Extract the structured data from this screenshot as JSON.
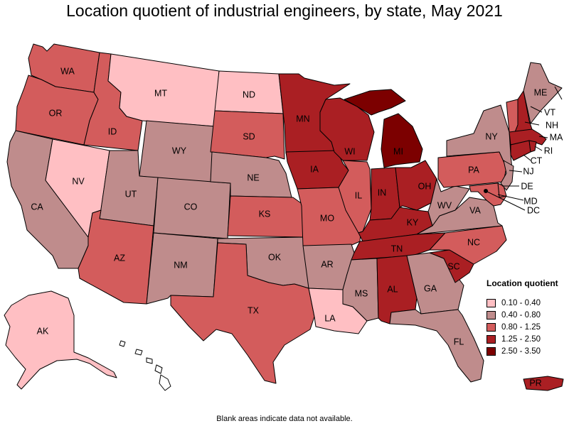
{
  "title": "Location quotient of industrial engineers, by state, May 2021",
  "footnote": "Blank areas indicate data not available.",
  "legend": {
    "title": "Location quotient",
    "items": [
      {
        "label": "0.10 - 0.40",
        "color": "#ffbfc3"
      },
      {
        "label": "0.40 - 0.80",
        "color": "#bf8c8c"
      },
      {
        "label": "0.80 - 1.25",
        "color": "#d35c5c"
      },
      {
        "label": "1.25 - 2.50",
        "color": "#aa1f23"
      },
      {
        "label": "2.50 - 3.50",
        "color": "#7c0000"
      }
    ]
  },
  "states": {
    "WA": {
      "label": "WA",
      "class": 3
    },
    "OR": {
      "label": "OR",
      "class": 3
    },
    "CA": {
      "label": "CA",
      "class": 2
    },
    "ID": {
      "label": "ID",
      "class": 3
    },
    "NV": {
      "label": "NV",
      "class": 1
    },
    "MT": {
      "label": "MT",
      "class": 1
    },
    "WY": {
      "label": "WY",
      "class": 2
    },
    "UT": {
      "label": "UT",
      "class": 2
    },
    "AZ": {
      "label": "AZ",
      "class": 3
    },
    "CO": {
      "label": "CO",
      "class": 2
    },
    "NM": {
      "label": "NM",
      "class": 2
    },
    "ND": {
      "label": "ND",
      "class": 1
    },
    "SD": {
      "label": "SD",
      "class": 3
    },
    "NE": {
      "label": "NE",
      "class": 2
    },
    "KS": {
      "label": "KS",
      "class": 3
    },
    "OK": {
      "label": "OK",
      "class": 2
    },
    "TX": {
      "label": "TX",
      "class": 3
    },
    "MN": {
      "label": "MN",
      "class": 4
    },
    "IA": {
      "label": "IA",
      "class": 4
    },
    "MO": {
      "label": "MO",
      "class": 3
    },
    "AR": {
      "label": "AR",
      "class": 2
    },
    "LA": {
      "label": "LA",
      "class": 1
    },
    "WI": {
      "label": "WI",
      "class": 4
    },
    "IL": {
      "label": "IL",
      "class": 3
    },
    "MI": {
      "label": "MI",
      "class": 5
    },
    "IN": {
      "label": "IN",
      "class": 4
    },
    "OH": {
      "label": "OH",
      "class": 4
    },
    "KY": {
      "label": "KY",
      "class": 4
    },
    "TN": {
      "label": "TN",
      "class": 4
    },
    "MS": {
      "label": "MS",
      "class": 2
    },
    "AL": {
      "label": "AL",
      "class": 4
    },
    "GA": {
      "label": "GA",
      "class": 2
    },
    "FL": {
      "label": "FL",
      "class": 2
    },
    "SC": {
      "label": "SC",
      "class": 4
    },
    "NC": {
      "label": "NC",
      "class": 3
    },
    "VA": {
      "label": "VA",
      "class": 2
    },
    "WV": {
      "label": "WV",
      "class": 2
    },
    "PA": {
      "label": "PA",
      "class": 3
    },
    "NY": {
      "label": "NY",
      "class": 2
    },
    "VT": {
      "label": "VT",
      "class": 3
    },
    "NH": {
      "label": "NH",
      "class": 4
    },
    "ME": {
      "label": "ME",
      "class": 2
    },
    "MA": {
      "label": "MA",
      "class": 4
    },
    "RI": {
      "label": "RI",
      "class": 4
    },
    "CT": {
      "label": "CT",
      "class": 4
    },
    "NJ": {
      "label": "NJ",
      "class": 2
    },
    "DE": {
      "label": "DE",
      "class": 3
    },
    "MD": {
      "label": "MD",
      "class": 3
    },
    "DC": {
      "label": "DC",
      "class": 1
    },
    "AK": {
      "label": "AK",
      "class": 1
    },
    "HI": {
      "label": "",
      "class": 0
    },
    "PR": {
      "label": "PR",
      "class": 4
    }
  }
}
